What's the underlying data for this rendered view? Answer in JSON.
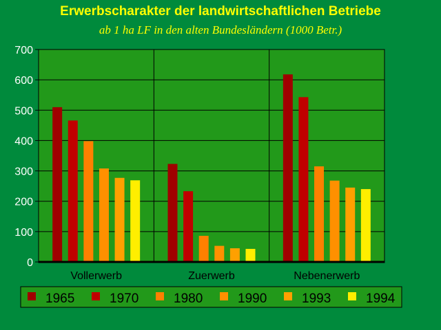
{
  "chart_data": {
    "type": "bar",
    "title": "Erwerbscharakter der landwirtschaftlichen Betriebe",
    "subtitle": "ab 1 ha LF in den alten Bundesländern (1000 Betr.)",
    "categories": [
      "Vollerwerb",
      "Zuerwerb",
      "Nebenerwerb"
    ],
    "ylim": [
      0,
      700
    ],
    "yticks": [
      "0",
      "100",
      "200",
      "300",
      "400",
      "500",
      "600",
      "700"
    ],
    "grid": true,
    "legend_position": "bottom",
    "series": [
      {
        "name": "1965",
        "color": "#a00000",
        "values": [
          510,
          323,
          618
        ]
      },
      {
        "name": "1970",
        "color": "#c00000",
        "values": [
          466,
          233,
          543
        ]
      },
      {
        "name": "1980",
        "color": "#ff8000",
        "values": [
          398,
          86,
          315
        ]
      },
      {
        "name": "1990",
        "color": "#ff9000",
        "values": [
          308,
          53,
          268
        ]
      },
      {
        "name": "1993",
        "color": "#ffa000",
        "values": [
          277,
          45,
          245
        ]
      },
      {
        "name": "1994",
        "color": "#ffee00",
        "values": [
          269,
          43,
          240
        ]
      }
    ],
    "colors": {
      "background": "#008a3c",
      "plot_area": "#22991a",
      "title": "#ffff00",
      "legend_box": "#22991a"
    }
  }
}
